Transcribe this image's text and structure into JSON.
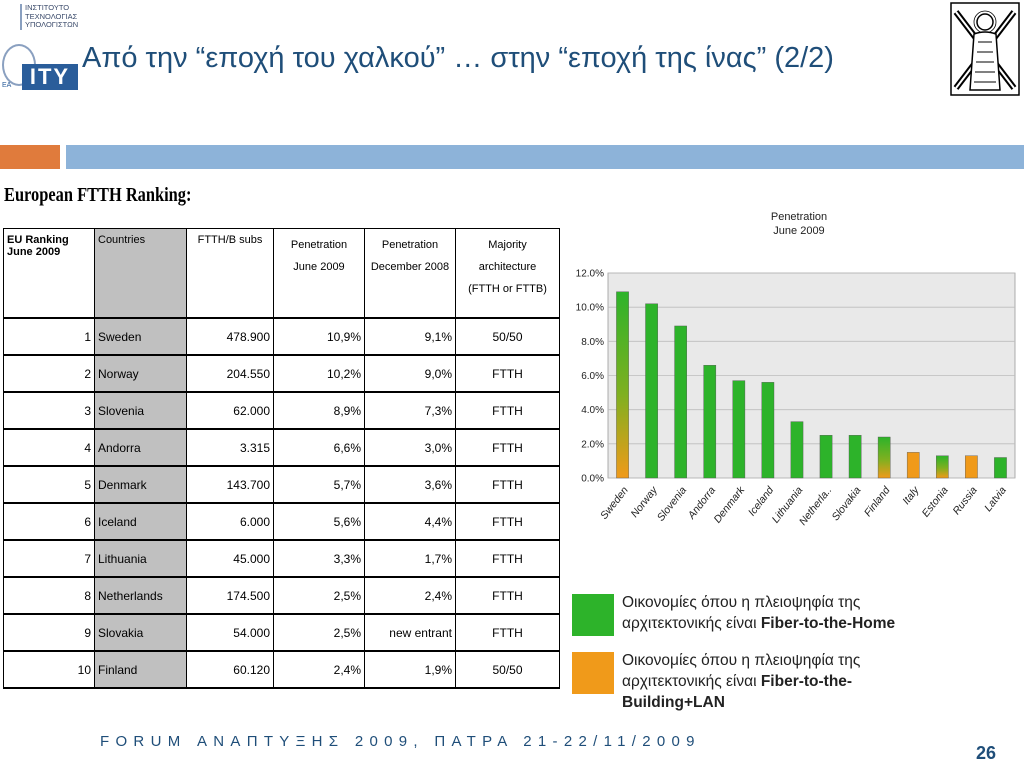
{
  "logo_left": {
    "institute_lines": [
      "ΙΝΣΤΙΤΟΥΤΟ",
      "ΤΕΧΝΟΛΟΓΙΑΣ",
      "ΥΠΟΛΟΓΙΣΤΩΝ"
    ],
    "acronym": "ITY",
    "prefix": "ΕΑ"
  },
  "slide": {
    "title": "Από την “εποχή του χαλκού” … στην “εποχή της ίνας” (2/2)",
    "footer": "FORUM ΑΝΑΠΤΥΞΗΣ 2009, ΠΑΤΡΑ 21-22/11/2009",
    "page_number": "26"
  },
  "colors": {
    "accent_orange": "#e07b3c",
    "accent_blue": "#8db3d9",
    "title": "#1f4e79",
    "ftth_green": "#2db32a",
    "fttb_orange": "#f09a1a"
  },
  "table": {
    "title": "European FTTH Ranking:",
    "headers": [
      "EU Ranking\nJune 2009",
      "Countries",
      "FTTH/B subs",
      "Penetration\nJune 2009",
      "Penetration\nDecember 2008",
      "Majority architecture\n(FTTH or FTTB)"
    ],
    "rows": [
      [
        "1",
        "Sweden",
        "478.900",
        "10,9%",
        "9,1%",
        "50/50"
      ],
      [
        "2",
        "Norway",
        "204.550",
        "10,2%",
        "9,0%",
        "FTTH"
      ],
      [
        "3",
        "Slovenia",
        "62.000",
        "8,9%",
        "7,3%",
        "FTTH"
      ],
      [
        "4",
        "Andorra",
        "3.315",
        "6,6%",
        "3,0%",
        "FTTH"
      ],
      [
        "5",
        "Denmark",
        "143.700",
        "5,7%",
        "3,6%",
        "FTTH"
      ],
      [
        "6",
        "Iceland",
        "6.000",
        "5,6%",
        "4,4%",
        "FTTH"
      ],
      [
        "7",
        "Lithuania",
        "45.000",
        "3,3%",
        "1,7%",
        "FTTH"
      ],
      [
        "8",
        "Netherlands",
        "174.500",
        "2,5%",
        "2,4%",
        "FTTH"
      ],
      [
        "9",
        "Slovakia",
        "54.000",
        "2,5%",
        "new entrant",
        "FTTH"
      ],
      [
        "10",
        "Finland",
        "60.120",
        "2,4%",
        "1,9%",
        "50/50"
      ]
    ]
  },
  "chart_data": {
    "type": "bar",
    "title": "Penetration\nJune  2009",
    "categories": [
      "Sweden",
      "Norway",
      "Slovenia",
      "Andorra",
      "Denmark",
      "Iceland",
      "Lithuania",
      "Netherla..",
      "Slovakia",
      "Finland",
      "Italy",
      "Estonia",
      "Russia",
      "Latvia"
    ],
    "values": [
      10.9,
      10.2,
      8.9,
      6.6,
      5.7,
      5.6,
      3.3,
      2.5,
      2.5,
      2.4,
      1.5,
      1.3,
      1.3,
      1.2
    ],
    "architecture": [
      "mixed",
      "FTTH",
      "FTTH",
      "FTTH",
      "FTTH",
      "FTTH",
      "FTTH",
      "FTTH",
      "FTTH",
      "mixed",
      "FTTB",
      "mixed",
      "FTTB",
      "FTTH"
    ],
    "ylim": [
      0,
      12
    ],
    "yticks": [
      "0.0%",
      "2.0%",
      "4.0%",
      "6.0%",
      "8.0%",
      "10.0%",
      "12.0%"
    ],
    "grid": true,
    "plot_background": "#e9e9e9"
  },
  "legend": {
    "ftth": {
      "line1": "Οικονομίες όπου η πλειοψηφία της",
      "line2_prefix": "αρχιτεκτονικής είναι ",
      "line2_bold": "Fiber-to-the-Home"
    },
    "fttb": {
      "line1": "Οικονομίες όπου η πλειοψηφία της",
      "line2_prefix": "αρχιτεκτονικής είναι ",
      "line2_bold": "Fiber-to-the-",
      "line3_bold": "Building+LAN"
    }
  }
}
